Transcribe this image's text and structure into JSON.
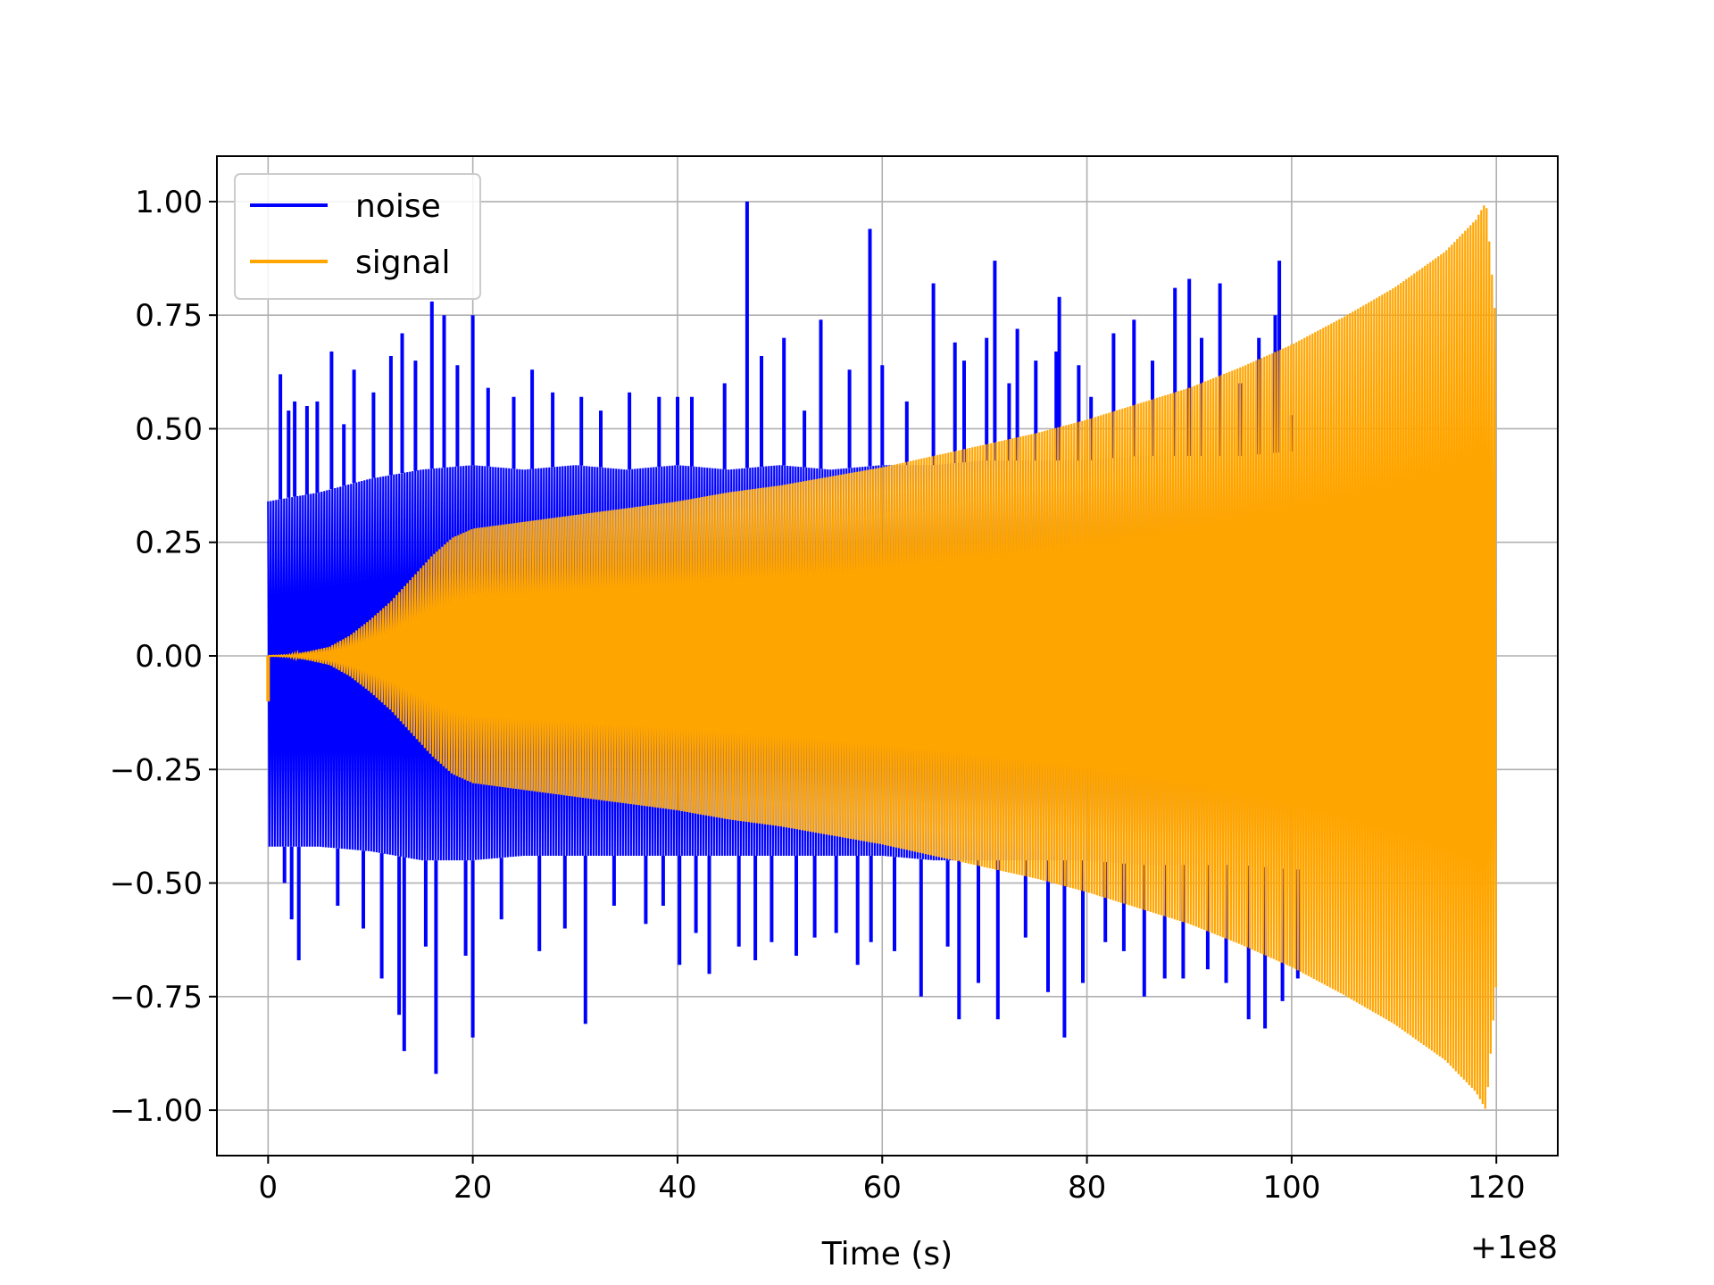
{
  "chart_data": {
    "type": "line",
    "title": "",
    "xlabel": "Time (s)",
    "ylabel": "",
    "x_offset_label": "+1e8",
    "xlim": [
      -5,
      126
    ],
    "ylim": [
      -1.1,
      1.1
    ],
    "xticks": [
      0,
      20,
      40,
      60,
      80,
      100,
      120
    ],
    "xtick_labels": [
      "0",
      "20",
      "40",
      "60",
      "80",
      "100",
      "120"
    ],
    "yticks": [
      1.0,
      0.75,
      0.5,
      0.25,
      0.0,
      -0.25,
      -0.5,
      -0.75,
      -1.0
    ],
    "ytick_labels": [
      "1.00",
      "0.75",
      "0.50",
      "0.25",
      "0.00",
      "−0.25",
      "−0.50",
      "−0.75",
      "−1.00"
    ],
    "grid": true,
    "legend_position": "top-left",
    "series": [
      {
        "name": "noise",
        "color": "#0000ff",
        "style": "oscillating",
        "x_range": [
          0,
          101
        ],
        "envelope": {
          "x": [
            0,
            5,
            10,
            15,
            20,
            25,
            30,
            35,
            40,
            45,
            50,
            55,
            60,
            65,
            70,
            75,
            80,
            85,
            90,
            95,
            100,
            101
          ],
          "upper": [
            0.34,
            0.36,
            0.39,
            0.41,
            0.42,
            0.41,
            0.42,
            0.41,
            0.42,
            0.41,
            0.42,
            0.41,
            0.42,
            0.42,
            0.43,
            0.43,
            0.43,
            0.44,
            0.44,
            0.44,
            0.45,
            0.45
          ],
          "lower": [
            -0.42,
            -0.42,
            -0.43,
            -0.45,
            -0.45,
            -0.44,
            -0.44,
            -0.44,
            -0.44,
            -0.44,
            -0.44,
            -0.44,
            -0.44,
            -0.45,
            -0.45,
            -0.45,
            -0.45,
            -0.46,
            -0.46,
            -0.46,
            -0.47,
            -0.47
          ]
        },
        "spikes": [
          [
            1.2,
            0.62
          ],
          [
            1.6,
            -0.5
          ],
          [
            2.0,
            0.54
          ],
          [
            2.3,
            -0.58
          ],
          [
            2.6,
            0.56
          ],
          [
            3.0,
            -0.67
          ],
          [
            3.8,
            0.55
          ],
          [
            4.8,
            0.56
          ],
          [
            6.2,
            0.67
          ],
          [
            6.8,
            -0.55
          ],
          [
            7.4,
            0.51
          ],
          [
            8.4,
            0.63
          ],
          [
            9.3,
            -0.6
          ],
          [
            10.3,
            0.58
          ],
          [
            11.1,
            -0.71
          ],
          [
            12.0,
            0.66
          ],
          [
            12.8,
            -0.79
          ],
          [
            13.1,
            0.71
          ],
          [
            13.3,
            -0.87
          ],
          [
            14.4,
            0.65
          ],
          [
            15.4,
            -0.64
          ],
          [
            16.0,
            0.78
          ],
          [
            16.4,
            -0.92
          ],
          [
            17.2,
            0.75
          ],
          [
            18.5,
            0.64
          ],
          [
            19.3,
            -0.66
          ],
          [
            20.0,
            0.75
          ],
          [
            20.0,
            -0.84
          ],
          [
            21.5,
            0.59
          ],
          [
            22.8,
            -0.58
          ],
          [
            24.0,
            0.57
          ],
          [
            25.8,
            0.63
          ],
          [
            26.5,
            -0.65
          ],
          [
            27.8,
            0.58
          ],
          [
            29.0,
            -0.6
          ],
          [
            30.6,
            0.57
          ],
          [
            31.0,
            -0.81
          ],
          [
            32.5,
            0.54
          ],
          [
            33.8,
            -0.55
          ],
          [
            35.3,
            0.58
          ],
          [
            36.9,
            -0.59
          ],
          [
            38.2,
            0.57
          ],
          [
            38.6,
            -0.55
          ],
          [
            40.0,
            0.57
          ],
          [
            40.2,
            -0.68
          ],
          [
            41.4,
            0.57
          ],
          [
            41.8,
            -0.61
          ],
          [
            43.1,
            -0.7
          ],
          [
            44.6,
            0.6
          ],
          [
            46.0,
            -0.64
          ],
          [
            46.8,
            1.0
          ],
          [
            47.6,
            -0.67
          ],
          [
            48.2,
            0.66
          ],
          [
            49.2,
            -0.63
          ],
          [
            50.4,
            0.7
          ],
          [
            51.6,
            -0.66
          ],
          [
            52.4,
            0.54
          ],
          [
            53.4,
            -0.62
          ],
          [
            54.0,
            0.74
          ],
          [
            55.5,
            -0.61
          ],
          [
            56.8,
            0.63
          ],
          [
            57.6,
            -0.68
          ],
          [
            58.8,
            0.94
          ],
          [
            58.9,
            -0.63
          ],
          [
            60.0,
            0.64
          ],
          [
            61.2,
            -0.65
          ],
          [
            62.4,
            0.56
          ],
          [
            63.8,
            -0.75
          ],
          [
            65.0,
            0.82
          ],
          [
            66.4,
            -0.64
          ],
          [
            67.1,
            0.69
          ],
          [
            67.5,
            -0.8
          ],
          [
            68.0,
            0.65
          ],
          [
            69.4,
            -0.72
          ],
          [
            70.2,
            0.7
          ],
          [
            71.0,
            0.87
          ],
          [
            71.3,
            -0.8
          ],
          [
            72.4,
            0.6
          ],
          [
            73.2,
            0.72
          ],
          [
            74.0,
            -0.62
          ],
          [
            75.0,
            0.65
          ],
          [
            76.2,
            -0.74
          ],
          [
            77.0,
            0.67
          ],
          [
            77.3,
            0.79
          ],
          [
            77.8,
            -0.84
          ],
          [
            79.2,
            0.64
          ],
          [
            79.6,
            -0.72
          ],
          [
            80.4,
            0.57
          ],
          [
            81.8,
            -0.63
          ],
          [
            82.6,
            0.71
          ],
          [
            83.6,
            -0.65
          ],
          [
            84.6,
            0.74
          ],
          [
            85.6,
            -0.75
          ],
          [
            86.4,
            0.65
          ],
          [
            87.6,
            -0.71
          ],
          [
            88.6,
            0.81
          ],
          [
            89.4,
            -0.71
          ],
          [
            90.0,
            0.83
          ],
          [
            91.2,
            0.7
          ],
          [
            91.8,
            -0.69
          ],
          [
            93.0,
            0.82
          ],
          [
            93.6,
            -0.72
          ],
          [
            95.0,
            0.6
          ],
          [
            95.8,
            -0.8
          ],
          [
            96.8,
            0.7
          ],
          [
            97.4,
            -0.82
          ],
          [
            98.4,
            0.75
          ],
          [
            98.8,
            0.87
          ],
          [
            99.1,
            -0.76
          ],
          [
            100.0,
            0.53
          ],
          [
            100.6,
            -0.71
          ]
        ]
      },
      {
        "name": "signal",
        "color": "#ffa500",
        "style": "oscillating",
        "x_range": [
          0,
          120
        ],
        "envelope": {
          "x": [
            0,
            2,
            4,
            6,
            8,
            10,
            12,
            14,
            16,
            18,
            20,
            25,
            30,
            35,
            40,
            45,
            50,
            55,
            60,
            65,
            70,
            75,
            80,
            85,
            90,
            95,
            100,
            105,
            110,
            115,
            118,
            119,
            120
          ],
          "upper": [
            0.0,
            0.002,
            0.01,
            0.02,
            0.045,
            0.08,
            0.12,
            0.17,
            0.22,
            0.26,
            0.28,
            0.295,
            0.31,
            0.325,
            0.34,
            0.36,
            0.375,
            0.395,
            0.415,
            0.44,
            0.465,
            0.49,
            0.52,
            0.555,
            0.59,
            0.635,
            0.685,
            0.745,
            0.81,
            0.89,
            0.96,
            1.0,
            0.72
          ],
          "lower": [
            0.0,
            -0.002,
            -0.01,
            -0.02,
            -0.045,
            -0.08,
            -0.12,
            -0.17,
            -0.22,
            -0.26,
            -0.28,
            -0.295,
            -0.31,
            -0.325,
            -0.34,
            -0.36,
            -0.375,
            -0.395,
            -0.415,
            -0.44,
            -0.465,
            -0.49,
            -0.52,
            -0.555,
            -0.59,
            -0.635,
            -0.685,
            -0.745,
            -0.81,
            -0.89,
            -0.96,
            -1.0,
            -0.72
          ]
        },
        "initial_dip": [
          [
            0,
            -0.1
          ],
          [
            0.4,
            0.0
          ]
        ]
      }
    ]
  }
}
